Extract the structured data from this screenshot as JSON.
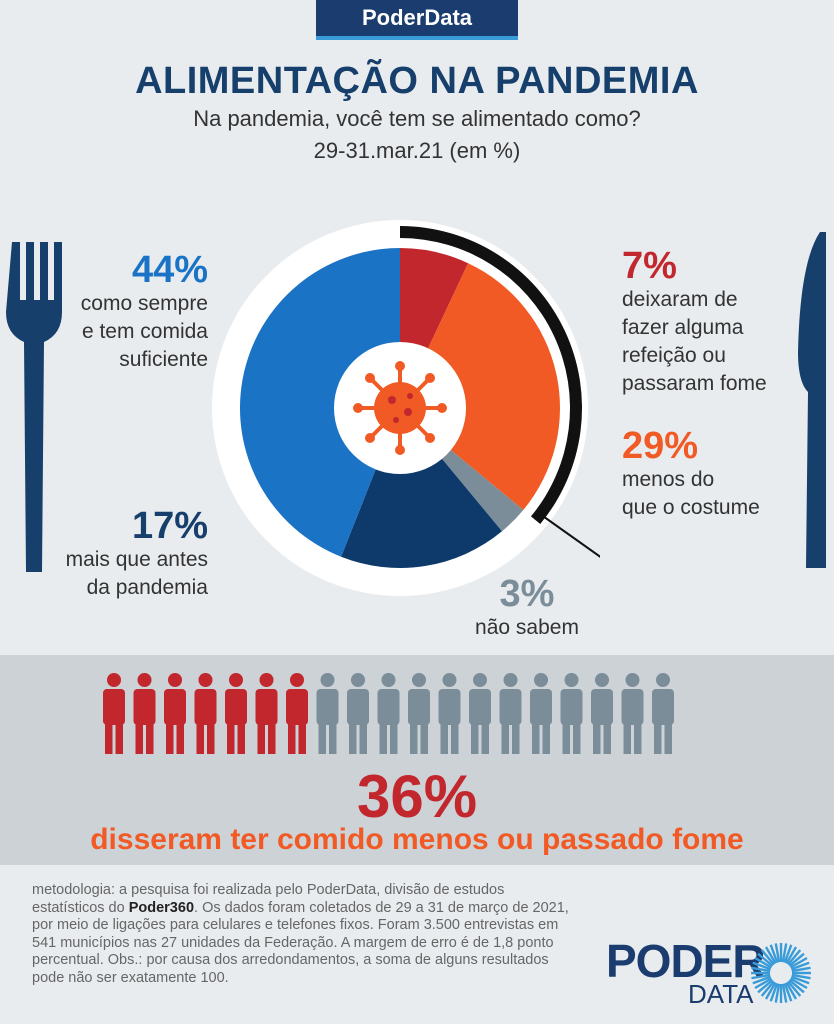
{
  "header": {
    "brand": "PoderData"
  },
  "title": "ALIMENTAÇÃO NA PANDEMIA",
  "subtitle": "Na pandemia, você tem se alimentado como?",
  "date": "29-31.mar.21 (em %)",
  "colors": {
    "navy": "#173f6c",
    "blue": "#1a73c5",
    "darkblue": "#0d3a6b",
    "red": "#c1272d",
    "orange": "#f15a24",
    "gray": "#7b8d99",
    "black": "#111111"
  },
  "chart_data": {
    "type": "pie",
    "title": "ALIMENTAÇÃO NA PANDEMIA",
    "slices": [
      {
        "label": "deixaram de fazer alguma refeição ou passaram fome",
        "value": 7,
        "color": "#c1272d"
      },
      {
        "label": "menos do que o costume",
        "value": 29,
        "color": "#f15a24"
      },
      {
        "label": "não sabem",
        "value": 3,
        "color": "#7b8d99"
      },
      {
        "label": "mais que antes da pandemia",
        "value": 17,
        "color": "#0d3a6b"
      },
      {
        "label": "como sempre e tem comida suficiente",
        "value": 44,
        "color": "#1a73c5"
      }
    ]
  },
  "labels": {
    "l44": {
      "pct": "44%",
      "l1": "como sempre",
      "l2": "e tem comida",
      "l3": "suficiente"
    },
    "l17": {
      "pct": "17%",
      "l1": "mais que antes",
      "l2": "da pandemia"
    },
    "l7": {
      "pct": "7%",
      "l1": "deixaram de",
      "l2": "fazer alguma",
      "l3": "refeição ou",
      "l4": "passaram fome"
    },
    "l29": {
      "pct": "29%",
      "l1": "menos do",
      "l2": "que o costume"
    },
    "l3": {
      "pct": "3%",
      "l1": "não sabem"
    }
  },
  "summary": {
    "value": "36%",
    "text": "disseram ter comido menos ou passado fome",
    "people_total": 19,
    "people_highlighted": 7
  },
  "methodology": {
    "p1": "metodologia: a pesquisa foi realizada pelo PoderData, divisão de estudos estatísticos do ",
    "bold": "Poder360",
    "p2": ". Os dados foram coletados de 29 a 31 de março de 2021, por meio de ligações para celulares e telefones fixos. Foram 3.500 entrevistas em 541 municípios nas 27 unidades da Federação. A margem de erro é de 1,8 ponto percentual. Obs.: por causa dos arredondamentos, a soma de alguns resultados pode não ser exatamente 100."
  },
  "logo": {
    "poder": "PODER",
    "data": "DATA"
  }
}
